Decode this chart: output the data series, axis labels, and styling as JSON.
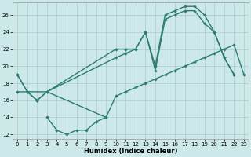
{
  "background_color": "#cce8e8",
  "grid_color": "#aacccc",
  "line_color": "#2d7d6e",
  "xlabel": "Humidex (Indice chaleur)",
  "xlim": [
    -0.5,
    23.5
  ],
  "ylim": [
    11.5,
    27.5
  ],
  "xticks": [
    0,
    1,
    2,
    3,
    4,
    5,
    6,
    7,
    8,
    9,
    10,
    11,
    12,
    13,
    14,
    15,
    16,
    17,
    18,
    19,
    20,
    21,
    22,
    23
  ],
  "yticks": [
    12,
    14,
    16,
    18,
    20,
    22,
    24,
    26
  ],
  "curve1_x": [
    0,
    1,
    2,
    3,
    10,
    11,
    12,
    13,
    14,
    15,
    16,
    17,
    18,
    19,
    20,
    21,
    22
  ],
  "curve1_y": [
    19,
    17,
    16,
    17,
    22,
    22,
    22,
    24,
    20,
    26,
    26.5,
    27,
    27,
    26,
    24,
    21,
    19
  ],
  "curve2_x": [
    0,
    1,
    2,
    3,
    10,
    11,
    12,
    13,
    14,
    15,
    16,
    17,
    18,
    19,
    20,
    21,
    22
  ],
  "curve2_y": [
    19,
    17,
    16,
    17,
    21,
    21.5,
    22,
    24,
    19.5,
    25.5,
    26,
    26.5,
    26.5,
    25,
    24,
    21,
    19
  ],
  "curve3_x": [
    0,
    3,
    9,
    10,
    11,
    12,
    13,
    14,
    15,
    16,
    17,
    18,
    19,
    20,
    21,
    22,
    23
  ],
  "curve3_y": [
    17,
    17,
    14,
    16.5,
    17,
    17.5,
    18,
    18.5,
    19,
    19.5,
    20,
    20.5,
    21,
    21.5,
    22,
    22.5,
    19
  ],
  "curve4_x": [
    3,
    4,
    5,
    6,
    7,
    8,
    9
  ],
  "curve4_y": [
    14,
    12.5,
    12,
    12.5,
    12.5,
    13.5,
    14
  ]
}
